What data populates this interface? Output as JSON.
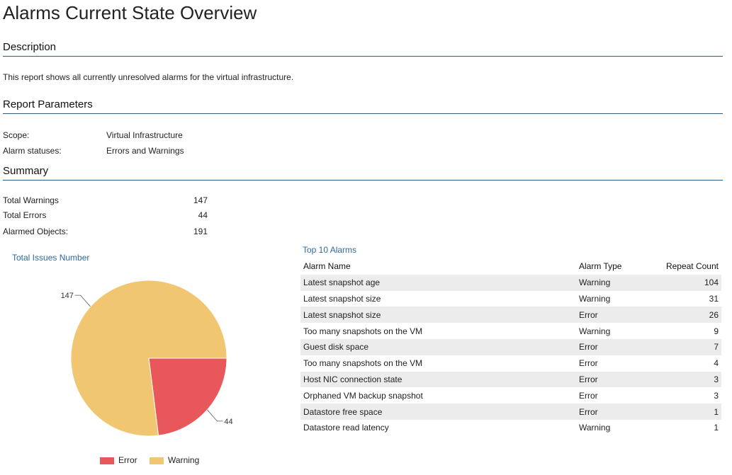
{
  "page": {
    "title": "Alarms Current State Overview"
  },
  "description": {
    "heading": "Description",
    "text": "This report shows all currently unresolved alarms for the virtual infrastructure."
  },
  "parameters": {
    "heading": "Report Parameters",
    "rows": [
      {
        "label": "Scope:",
        "value": "Virtual Infrastructure"
      },
      {
        "label": "Alarm statuses:",
        "value": "Errors and Warnings"
      }
    ]
  },
  "summary": {
    "heading": "Summary",
    "rows": [
      {
        "label": "Total Warnings",
        "value": "147"
      },
      {
        "label": "Total Errors",
        "value": "44"
      },
      {
        "label": "Alarmed Objects:",
        "value": "191"
      }
    ]
  },
  "colors": {
    "error": "#e8585a",
    "warning": "#f0c671",
    "rule": "#2e5a86",
    "link": "#2e6a9e"
  },
  "chart_data": {
    "type": "pie",
    "title": "Total Issues Number",
    "categories": [
      "Error",
      "Warning"
    ],
    "values": [
      44,
      147
    ],
    "data_labels": [
      "44",
      "147"
    ],
    "legend": "bottom",
    "colors": [
      "#e8585a",
      "#f0c671"
    ]
  },
  "top_alarms": {
    "title": "Top 10 Alarms",
    "columns": [
      "Alarm Name",
      "Alarm Type",
      "Repeat Count"
    ],
    "rows": [
      {
        "name": "Latest snapshot age",
        "type": "Warning",
        "count": "104"
      },
      {
        "name": "Latest snapshot size",
        "type": "Warning",
        "count": "31"
      },
      {
        "name": "Latest snapshot size",
        "type": "Error",
        "count": "26"
      },
      {
        "name": "Too many snapshots on the VM",
        "type": "Warning",
        "count": "9"
      },
      {
        "name": "Guest disk space",
        "type": "Error",
        "count": "7"
      },
      {
        "name": "Too many snapshots on the VM",
        "type": "Error",
        "count": "4"
      },
      {
        "name": "Host NIC connection state",
        "type": "Error",
        "count": "3"
      },
      {
        "name": "Orphaned VM backup snapshot",
        "type": "Error",
        "count": "3"
      },
      {
        "name": "Datastore free space",
        "type": "Error",
        "count": "1"
      },
      {
        "name": "Datastore read latency",
        "type": "Warning",
        "count": "1"
      }
    ]
  }
}
